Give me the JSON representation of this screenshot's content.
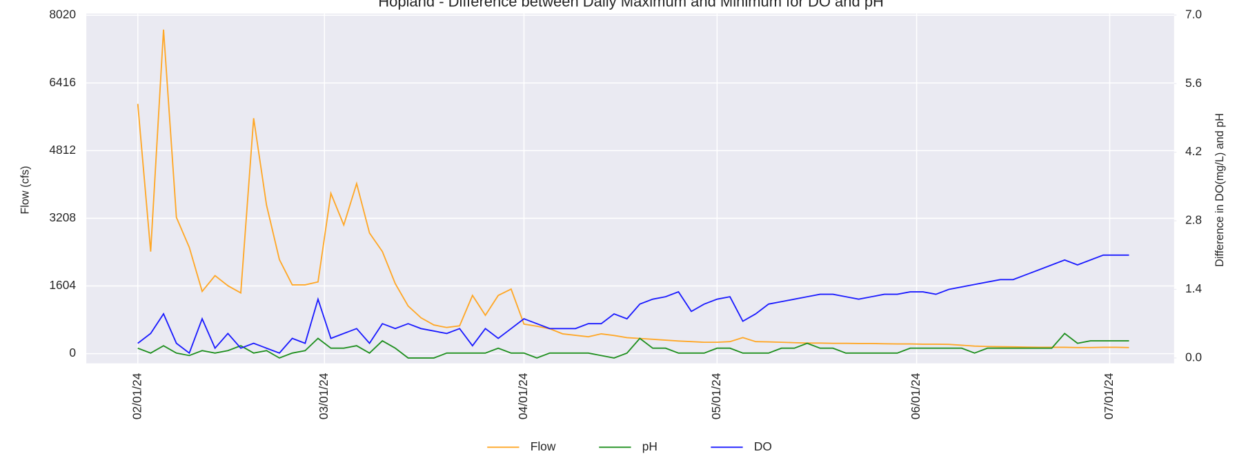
{
  "chart_data": {
    "type": "line",
    "title": "Hopland - Difference between Daily Maximum and Minimum for DO and pH",
    "ylabel": "Flow (cfs)",
    "y2label": "Difference in DO(mg/L) and pH",
    "x": [
      "2024-02-01",
      "2024-02-03",
      "2024-02-05",
      "2024-02-07",
      "2024-02-09",
      "2024-02-11",
      "2024-02-13",
      "2024-02-15",
      "2024-02-17",
      "2024-02-19",
      "2024-02-21",
      "2024-02-23",
      "2024-02-25",
      "2024-02-27",
      "2024-02-29",
      "2024-03-02",
      "2024-03-04",
      "2024-03-06",
      "2024-03-08",
      "2024-03-10",
      "2024-03-12",
      "2024-03-14",
      "2024-03-16",
      "2024-03-18",
      "2024-03-20",
      "2024-03-22",
      "2024-03-24",
      "2024-03-26",
      "2024-03-28",
      "2024-03-30",
      "2024-04-01",
      "2024-04-03",
      "2024-04-05",
      "2024-04-07",
      "2024-04-09",
      "2024-04-11",
      "2024-04-13",
      "2024-04-15",
      "2024-04-17",
      "2024-04-19",
      "2024-04-21",
      "2024-04-23",
      "2024-04-25",
      "2024-04-27",
      "2024-04-29",
      "2024-05-01",
      "2024-05-03",
      "2024-05-05",
      "2024-05-07",
      "2024-05-09",
      "2024-05-11",
      "2024-05-13",
      "2024-05-15",
      "2024-05-17",
      "2024-05-19",
      "2024-05-21",
      "2024-05-23",
      "2024-05-25",
      "2024-05-27",
      "2024-05-29",
      "2024-05-31",
      "2024-06-02",
      "2024-06-04",
      "2024-06-06",
      "2024-06-08",
      "2024-06-10",
      "2024-06-12",
      "2024-06-14",
      "2024-06-16",
      "2024-06-18",
      "2024-06-20",
      "2024-06-22",
      "2024-06-24",
      "2024-06-26",
      "2024-06-28",
      "2024-06-30",
      "2024-07-02",
      "2024-07-04"
    ],
    "series": [
      {
        "name": "Flow",
        "color": "#ffa726",
        "values": [
          5920,
          2420,
          7680,
          3230,
          2520,
          1475,
          1850,
          1610,
          1440,
          5580,
          3520,
          2230,
          1630,
          1630,
          1700,
          3800,
          3050,
          4030,
          2860,
          2420,
          1660,
          1130,
          850,
          680,
          620,
          660,
          1380,
          910,
          1380,
          1530,
          700,
          650,
          590,
          470,
          435,
          400,
          470,
          430,
          380,
          360,
          340,
          320,
          300,
          285,
          270,
          270,
          285,
          380,
          285,
          280,
          270,
          260,
          250,
          250,
          245,
          245,
          240,
          240,
          235,
          230,
          230,
          225,
          225,
          220,
          200,
          180,
          170,
          165,
          160,
          155,
          150,
          150,
          150,
          145,
          145,
          150,
          150,
          145
        ]
      },
      {
        "name": "pH",
        "color": "#1f8f1f",
        "axis": "y2",
        "values": [
          0.2,
          0.1,
          0.25,
          0.1,
          0.05,
          0.15,
          0.1,
          0.15,
          0.25,
          0.1,
          0.15,
          0.0,
          0.1,
          0.15,
          0.4,
          0.2,
          0.2,
          0.25,
          0.1,
          0.35,
          0.2,
          0.0,
          0.0,
          0.0,
          0.1,
          0.1,
          0.1,
          0.1,
          0.2,
          0.1,
          0.1,
          0.0,
          0.1,
          0.1,
          0.1,
          0.1,
          0.05,
          0.0,
          0.1,
          0.4,
          0.2,
          0.2,
          0.1,
          0.1,
          0.1,
          0.2,
          0.2,
          0.1,
          0.1,
          0.1,
          0.2,
          0.2,
          0.3,
          0.2,
          0.2,
          0.1,
          0.1,
          0.1,
          0.1,
          0.1,
          0.2,
          0.2,
          0.2,
          0.2,
          0.2,
          0.1,
          0.2,
          0.2,
          0.2,
          0.2,
          0.2,
          0.2,
          0.5,
          0.3,
          0.35,
          0.35,
          0.35,
          0.35
        ]
      },
      {
        "name": "DO",
        "color": "#1a1aff",
        "axis": "y2",
        "values": [
          0.3,
          0.5,
          0.9,
          0.3,
          0.1,
          0.8,
          0.2,
          0.5,
          0.2,
          0.3,
          0.2,
          0.1,
          0.4,
          0.3,
          1.2,
          0.4,
          0.5,
          0.6,
          0.3,
          0.7,
          0.6,
          0.7,
          0.6,
          0.55,
          0.5,
          0.6,
          0.25,
          0.6,
          0.4,
          0.6,
          0.8,
          0.7,
          0.6,
          0.6,
          0.6,
          0.7,
          0.7,
          0.9,
          0.8,
          1.1,
          1.2,
          1.25,
          1.35,
          0.95,
          1.1,
          1.2,
          1.25,
          0.75,
          0.9,
          1.1,
          1.15,
          1.2,
          1.25,
          1.3,
          1.3,
          1.25,
          1.2,
          1.25,
          1.3,
          1.3,
          1.35,
          1.35,
          1.3,
          1.4,
          1.45,
          1.5,
          1.55,
          1.6,
          1.6,
          1.7,
          1.8,
          1.9,
          2.0,
          1.9,
          2.0,
          2.1,
          2.1,
          2.1
        ]
      }
    ],
    "xlim": [
      "2024-01-24",
      "2024-07-11"
    ],
    "xticks": [
      {
        "value": "2024-02-01",
        "label": "02/01/24"
      },
      {
        "value": "2024-03-01",
        "label": "03/01/24"
      },
      {
        "value": "2024-04-01",
        "label": "04/01/24"
      },
      {
        "value": "2024-05-01",
        "label": "05/01/24"
      },
      {
        "value": "2024-06-01",
        "label": "06/01/24"
      },
      {
        "value": "2024-07-01",
        "label": "07/01/24"
      }
    ],
    "ylim": [
      -230,
      8060
    ],
    "yticks": [
      0,
      1604,
      3208,
      4812,
      6416,
      8020
    ],
    "y2lim": [
      -0.11,
      7.03
    ],
    "y2ticks": [
      {
        "value": 0,
        "label": "0.0"
      },
      1.4,
      2.8,
      4.2,
      5.6,
      {
        "value": 7,
        "label": "7.0"
      }
    ],
    "grid": true,
    "legend": "bottom"
  }
}
